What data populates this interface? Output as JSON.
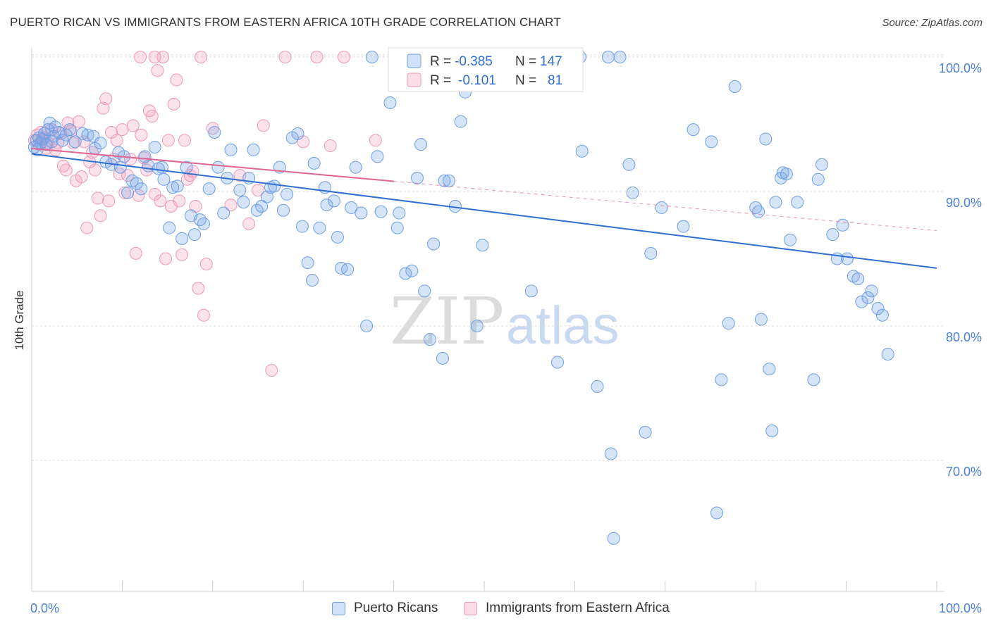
{
  "header": {
    "title": "PUERTO RICAN VS IMMIGRANTS FROM EASTERN AFRICA 10TH GRADE CORRELATION CHART",
    "source": "Source: ZipAtlas.com"
  },
  "watermark": {
    "zip": "ZIP",
    "atlas": "atlas"
  },
  "stats_legend": [
    {
      "r_label": "R =",
      "r_value": "-0.385",
      "n_label": "N =",
      "n_value": "147"
    },
    {
      "r_label": "R =",
      "r_value": "-0.101",
      "n_label": "N =",
      "n_value": "81"
    }
  ],
  "bottom_legend": [
    {
      "label": "Puerto Ricans"
    },
    {
      "label": "Immigrants from Eastern Africa"
    }
  ],
  "colors": {
    "blue_fill": "rgba(120,165,230,0.30)",
    "blue_stroke": "#6f9ee6",
    "blue_line": "#2f6fd1",
    "pink_fill": "rgba(245,160,190,0.30)",
    "pink_stroke": "#ec9ab6",
    "pink_line": "#e0668f",
    "tick_text": "#4a7fd4"
  },
  "chart_data": {
    "type": "scatter",
    "title": "PUERTO RICAN VS IMMIGRANTS FROM EASTERN AFRICA 10TH GRADE CORRELATION CHART",
    "xlabel": "",
    "ylabel": "10th Grade",
    "xlim": [
      0,
      100
    ],
    "ylim": [
      60.5,
      103.5
    ],
    "x_tick_labels": [
      "0.0%",
      "100.0%"
    ],
    "y_ticks": [
      70,
      80,
      90,
      100
    ],
    "y_tick_labels": [
      "70.0%",
      "80.0%",
      "90.0%",
      "100.0%"
    ],
    "grid": true,
    "legend_position": "top-center",
    "series": [
      {
        "name": "Puerto Ricans",
        "r": -0.385,
        "n": 147,
        "trend": {
          "x": [
            0,
            100
          ],
          "y": [
            92.8,
            84.3
          ],
          "x_solid_end": 100
        },
        "points": [
          [
            0.3,
            93.3
          ],
          [
            0.5,
            93.8
          ],
          [
            0.6,
            93.1
          ],
          [
            0.8,
            94.0
          ],
          [
            1.0,
            93.6
          ],
          [
            1.2,
            93.9
          ],
          [
            1.4,
            94.3
          ],
          [
            1.6,
            93.5
          ],
          [
            1.8,
            94.6
          ],
          [
            2.0,
            95.1
          ],
          [
            2.2,
            93.7
          ],
          [
            2.4,
            94.1
          ],
          [
            2.6,
            94.8
          ],
          [
            3.0,
            94.4
          ],
          [
            3.4,
            93.8
          ],
          [
            3.8,
            94.2
          ],
          [
            4.2,
            94.6
          ],
          [
            4.8,
            93.7
          ],
          [
            5.6,
            94.3
          ],
          [
            6.2,
            94.2
          ],
          [
            6.8,
            94.1
          ],
          [
            7.0,
            93.2
          ],
          [
            7.6,
            93.6
          ],
          [
            8.2,
            92.2
          ],
          [
            8.8,
            92.0
          ],
          [
            9.6,
            92.9
          ],
          [
            9.8,
            91.8
          ],
          [
            10.2,
            92.6
          ],
          [
            10.6,
            89.9
          ],
          [
            11.1,
            90.8
          ],
          [
            11.6,
            90.6
          ],
          [
            12.1,
            90.2
          ],
          [
            12.5,
            92.6
          ],
          [
            12.9,
            91.9
          ],
          [
            13.6,
            93.3
          ],
          [
            14.0,
            91.7
          ],
          [
            14.4,
            91.8
          ],
          [
            14.6,
            90.9
          ],
          [
            15.2,
            87.3
          ],
          [
            15.6,
            90.3
          ],
          [
            16.1,
            90.4
          ],
          [
            16.6,
            86.5
          ],
          [
            17.1,
            91.8
          ],
          [
            17.6,
            88.2
          ],
          [
            18.0,
            86.8
          ],
          [
            18.6,
            87.9
          ],
          [
            19.0,
            87.6
          ],
          [
            19.6,
            90.2
          ],
          [
            20.2,
            94.4
          ],
          [
            20.6,
            91.8
          ],
          [
            21.2,
            88.4
          ],
          [
            21.6,
            91.0
          ],
          [
            22.0,
            93.1
          ],
          [
            23.0,
            90.1
          ],
          [
            23.4,
            89.2
          ],
          [
            24.0,
            91.0
          ],
          [
            24.5,
            93.1
          ],
          [
            24.9,
            88.6
          ],
          [
            25.4,
            88.9
          ],
          [
            26.0,
            89.6
          ],
          [
            26.4,
            90.3
          ],
          [
            26.8,
            90.4
          ],
          [
            27.4,
            91.8
          ],
          [
            27.8,
            88.6
          ],
          [
            28.2,
            89.8
          ],
          [
            28.8,
            94.0
          ],
          [
            29.4,
            94.3
          ],
          [
            29.9,
            87.4
          ],
          [
            30.5,
            84.7
          ],
          [
            31.2,
            92.1
          ],
          [
            31.0,
            83.4
          ],
          [
            31.8,
            87.3
          ],
          [
            32.4,
            90.3
          ],
          [
            32.6,
            89.0
          ],
          [
            33.4,
            89.3
          ],
          [
            33.8,
            86.6
          ],
          [
            34.2,
            84.3
          ],
          [
            34.9,
            84.2
          ],
          [
            35.3,
            88.8
          ],
          [
            35.8,
            91.8
          ],
          [
            36.4,
            88.4
          ],
          [
            37.0,
            80.0
          ],
          [
            37.6,
            100.0
          ],
          [
            38.2,
            92.6
          ],
          [
            38.6,
            88.5
          ],
          [
            39.6,
            96.6
          ],
          [
            40.4,
            87.3
          ],
          [
            40.6,
            88.4
          ],
          [
            41.3,
            83.9
          ],
          [
            42.0,
            84.1
          ],
          [
            42.6,
            91.0
          ],
          [
            43.0,
            93.5
          ],
          [
            43.4,
            82.6
          ],
          [
            44.0,
            79.0
          ],
          [
            44.4,
            86.1
          ],
          [
            45.4,
            77.6
          ],
          [
            45.6,
            90.8
          ],
          [
            46.1,
            90.8
          ],
          [
            46.8,
            88.9
          ],
          [
            47.4,
            95.2
          ],
          [
            47.9,
            97.4
          ],
          [
            49.2,
            80.0
          ],
          [
            49.8,
            86.0
          ],
          [
            53.7,
            100.0
          ],
          [
            55.2,
            82.6
          ],
          [
            58.1,
            77.3
          ],
          [
            59.0,
            100.0
          ],
          [
            60.6,
            100.0
          ],
          [
            60.8,
            93.0
          ],
          [
            62.5,
            75.5
          ],
          [
            63.7,
            100.0
          ],
          [
            64.0,
            70.5
          ],
          [
            64.3,
            64.2
          ],
          [
            65.0,
            100.0
          ],
          [
            66.0,
            92.0
          ],
          [
            66.4,
            89.9
          ],
          [
            67.8,
            72.1
          ],
          [
            68.4,
            85.4
          ],
          [
            69.6,
            88.8
          ],
          [
            72.0,
            87.4
          ],
          [
            73.1,
            94.6
          ],
          [
            75.1,
            93.7
          ],
          [
            75.7,
            66.1
          ],
          [
            76.2,
            76.0
          ],
          [
            77.0,
            80.2
          ],
          [
            77.7,
            97.8
          ],
          [
            80.0,
            88.8
          ],
          [
            80.3,
            88.5
          ],
          [
            80.6,
            80.5
          ],
          [
            81.1,
            93.9
          ],
          [
            81.5,
            76.8
          ],
          [
            81.8,
            72.2
          ],
          [
            82.2,
            89.2
          ],
          [
            82.8,
            91.0
          ],
          [
            83.0,
            91.4
          ],
          [
            83.4,
            91.3
          ],
          [
            83.8,
            86.4
          ],
          [
            84.6,
            89.2
          ],
          [
            86.4,
            76.0
          ],
          [
            86.9,
            90.9
          ],
          [
            87.3,
            92.0
          ],
          [
            88.5,
            86.8
          ],
          [
            89.0,
            85.0
          ],
          [
            89.6,
            87.5
          ],
          [
            90.1,
            85.0
          ],
          [
            90.8,
            83.7
          ],
          [
            91.3,
            83.5
          ],
          [
            91.7,
            81.8
          ],
          [
            92.4,
            82.1
          ],
          [
            92.8,
            82.6
          ],
          [
            93.5,
            81.3
          ],
          [
            94.0,
            80.8
          ],
          [
            94.6,
            77.9
          ]
        ]
      },
      {
        "name": "Immigrants from Eastern Africa",
        "r": -0.101,
        "n": 81,
        "trend": {
          "x": [
            0,
            100
          ],
          "y": [
            93.2,
            87.1
          ],
          "x_solid_end": 40
        },
        "points": [
          [
            0.3,
            93.8
          ],
          [
            0.6,
            94.2
          ],
          [
            0.8,
            93.5
          ],
          [
            1.0,
            94.4
          ],
          [
            1.2,
            93.9
          ],
          [
            1.4,
            94.0
          ],
          [
            1.6,
            93.2
          ],
          [
            1.8,
            93.6
          ],
          [
            2.2,
            94.6
          ],
          [
            2.6,
            93.1
          ],
          [
            2.9,
            93.6
          ],
          [
            3.2,
            94.3
          ],
          [
            3.5,
            91.9
          ],
          [
            3.8,
            91.6
          ],
          [
            4.0,
            95.1
          ],
          [
            4.3,
            94.5
          ],
          [
            4.6,
            93.6
          ],
          [
            4.9,
            90.8
          ],
          [
            5.2,
            95.2
          ],
          [
            5.5,
            91.1
          ],
          [
            5.8,
            93.7
          ],
          [
            6.1,
            87.3
          ],
          [
            6.4,
            92.2
          ],
          [
            6.7,
            92.9
          ],
          [
            7.0,
            91.6
          ],
          [
            7.3,
            89.5
          ],
          [
            7.6,
            88.2
          ],
          [
            7.9,
            96.2
          ],
          [
            8.2,
            96.9
          ],
          [
            8.5,
            89.3
          ],
          [
            8.8,
            94.4
          ],
          [
            9.1,
            92.4
          ],
          [
            9.4,
            93.8
          ],
          [
            9.7,
            91.3
          ],
          [
            10.0,
            94.6
          ],
          [
            10.3,
            89.9
          ],
          [
            10.6,
            91.2
          ],
          [
            10.9,
            92.4
          ],
          [
            11.2,
            94.9
          ],
          [
            11.5,
            85.4
          ],
          [
            11.8,
            89.7
          ],
          [
            12.1,
            94.2
          ],
          [
            12.4,
            92.5
          ],
          [
            12.7,
            91.6
          ],
          [
            13.0,
            96.0
          ],
          [
            13.3,
            95.6
          ],
          [
            13.6,
            89.8
          ],
          [
            13.9,
            99.0
          ],
          [
            14.2,
            89.3
          ],
          [
            14.5,
            100.0
          ],
          [
            14.8,
            85.0
          ],
          [
            15.1,
            93.8
          ],
          [
            15.4,
            88.9
          ],
          [
            15.7,
            96.5
          ],
          [
            16.0,
            98.3
          ],
          [
            16.3,
            89.3
          ],
          [
            16.6,
            85.3
          ],
          [
            16.9,
            93.8
          ],
          [
            17.2,
            90.9
          ],
          [
            17.5,
            91.2
          ],
          [
            17.8,
            91.5
          ],
          [
            18.1,
            88.9
          ],
          [
            18.4,
            82.8
          ],
          [
            18.7,
            100.0
          ],
          [
            19.0,
            80.8
          ],
          [
            19.3,
            84.6
          ],
          [
            20.0,
            94.7
          ],
          [
            22.0,
            89.0
          ],
          [
            23.0,
            91.2
          ],
          [
            24.0,
            87.6
          ],
          [
            25.0,
            90.1
          ],
          [
            25.6,
            94.9
          ],
          [
            26.5,
            76.7
          ],
          [
            28.0,
            100.0
          ],
          [
            30.0,
            93.7
          ],
          [
            31.5,
            100.0
          ],
          [
            33.0,
            93.4
          ],
          [
            34.5,
            100.0
          ],
          [
            38.0,
            93.8
          ],
          [
            12.0,
            100.0
          ],
          [
            13.6,
            100.0
          ]
        ]
      }
    ]
  }
}
